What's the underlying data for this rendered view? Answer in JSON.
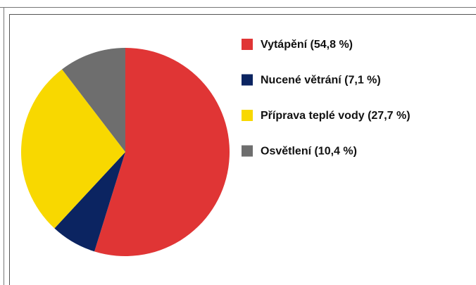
{
  "chart_data": {
    "type": "pie",
    "categories": [
      "Vytápění (54,8 %)",
      "Nucené větrání (7,1 %)",
      "Příprava teplé vody (27,7 %)",
      "Osvětlení (10,4 %)"
    ],
    "values": [
      54.8,
      7.1,
      27.7,
      10.4
    ],
    "colors": [
      "#e03535",
      "#0b2461",
      "#f8d800",
      "#6e6e6e"
    ],
    "legend": "right"
  }
}
